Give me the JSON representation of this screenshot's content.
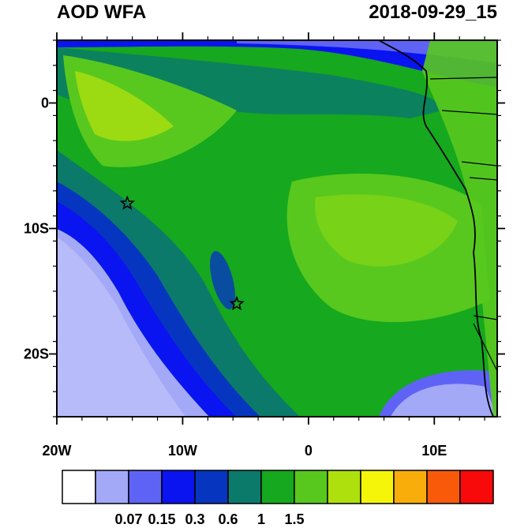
{
  "title_left": "AOD WFA",
  "title_right": "2018-09-29_15",
  "x_ticks": [
    {
      "label": "20W",
      "lon": -20
    },
    {
      "label": "10W",
      "lon": -10
    },
    {
      "label": "0",
      "lon": 0
    },
    {
      "label": "10E",
      "lon": 10
    }
  ],
  "y_ticks": [
    {
      "label": "0",
      "lat": 0
    },
    {
      "label": "10S",
      "lat": -10
    },
    {
      "label": "20S",
      "lat": -20
    }
  ],
  "map_extent": {
    "lon_min": -20,
    "lon_max": 15,
    "lat_min": -25,
    "lat_max": 5
  },
  "colorbar": {
    "colors": [
      "#ffffff",
      "#a3a8f7",
      "#5f63f5",
      "#0a14f0",
      "#0636c0",
      "#0b7a6a",
      "#16a81e",
      "#58c81e",
      "#aee00e",
      "#f5f50a",
      "#f8ad0a",
      "#f85a0a",
      "#f80a0a"
    ],
    "labels": [
      "0.07",
      "0.15",
      "0.3",
      "0.6",
      "1",
      "1.5"
    ]
  },
  "markers": [
    {
      "name": "star",
      "lon": -14.4,
      "lat": -8.0
    },
    {
      "name": "star",
      "lon": -5.7,
      "lat": -16.0
    }
  ]
}
